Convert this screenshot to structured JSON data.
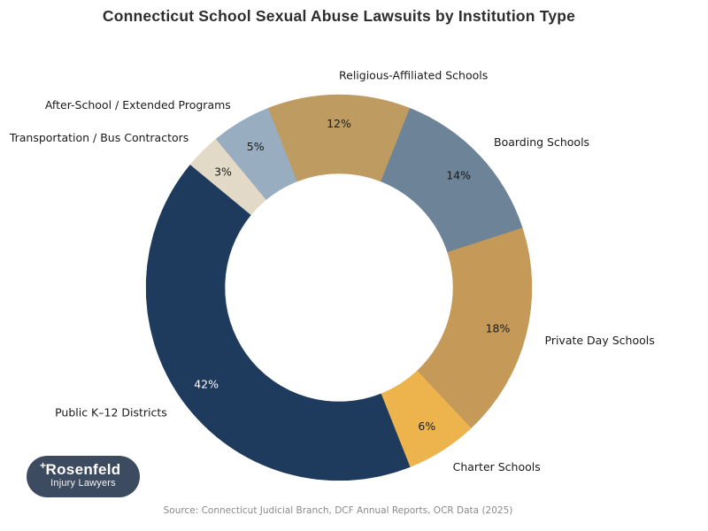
{
  "title": "Connecticut School Sexual Abuse Lawsuits by Institution Type",
  "source_note": "Source: Connecticut Judicial Branch, DCF Annual Reports, OCR Data (2025)",
  "logo": {
    "line1": "Rosenfeld",
    "line2": "Injury Lawyers",
    "cross_glyph": "+",
    "bg_color": "#3d4b60",
    "text_color": "#ffffff"
  },
  "chart_data": {
    "type": "pie",
    "subtype": "donut",
    "title": "Connecticut School Sexual Abuse Lawsuits by Institution Type",
    "categories": [
      "Religious-Affiliated Schools",
      "Boarding Schools",
      "Private Day Schools",
      "Charter Schools",
      "Public K–12 Districts",
      "Transportation / Bus Contractors",
      "After-School / Extended Programs"
    ],
    "values": [
      12,
      14,
      18,
      6,
      42,
      3,
      5
    ],
    "unit": "%",
    "pct_labels": [
      "12%",
      "14%",
      "18%",
      "6%",
      "42%",
      "3%",
      "5%"
    ],
    "colors": [
      "#bd9b61",
      "#6d8398",
      "#c59a58",
      "#edb44e",
      "#1e3a5c",
      "#e2d9c6",
      "#98adc0"
    ],
    "pct_label_colors": [
      "#1a1a1a",
      "#1a1a1a",
      "#1a1a1a",
      "#1a1a1a",
      "#ffffff",
      "#1a1a1a",
      "#1a1a1a"
    ],
    "label_color": "#1a1a1a",
    "start_angle_from_north_deg": -21.6,
    "direction": "clockwise",
    "inner_radius_ratio": 0.59,
    "legend_position": "outside-labels",
    "grid": false
  }
}
